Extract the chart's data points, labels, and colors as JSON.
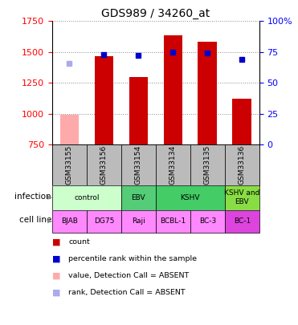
{
  "title": "GDS989 / 34260_at",
  "samples": [
    "GSM33155",
    "GSM33156",
    "GSM33154",
    "GSM33134",
    "GSM33135",
    "GSM33136"
  ],
  "count_values": [
    990,
    1467,
    1300,
    1633,
    1585,
    1120
  ],
  "count_absent": [
    true,
    false,
    false,
    false,
    false,
    false
  ],
  "percentile_values": [
    66,
    73,
    72,
    75,
    74,
    69
  ],
  "percentile_absent": [
    true,
    false,
    false,
    false,
    false,
    false
  ],
  "ylim_left": [
    750,
    1750
  ],
  "ylim_right": [
    0,
    100
  ],
  "yticks_left": [
    750,
    1000,
    1250,
    1500,
    1750
  ],
  "yticks_right": [
    0,
    25,
    50,
    75,
    100
  ],
  "infection_groups": [
    {
      "label": "control",
      "span": [
        0,
        2
      ],
      "color": "#ccffcc"
    },
    {
      "label": "EBV",
      "span": [
        2,
        3
      ],
      "color": "#55cc77"
    },
    {
      "label": "KSHV",
      "span": [
        3,
        5
      ],
      "color": "#44cc66"
    },
    {
      "label": "KSHV and\nEBV",
      "span": [
        5,
        6
      ],
      "color": "#88dd44"
    }
  ],
  "cell_lines": [
    "BJAB",
    "DG75",
    "Raji",
    "BCBL-1",
    "BC-3",
    "BC-1"
  ],
  "cell_line_colors": [
    "#ff88ff",
    "#ff88ff",
    "#ff88ff",
    "#ff88ff",
    "#ff88ff",
    "#dd44dd"
  ],
  "bar_color_normal": "#cc0000",
  "bar_color_absent": "#ffaaaa",
  "dot_color_normal": "#0000cc",
  "dot_color_absent": "#aaaaee",
  "bar_width": 0.55,
  "grid_color": "#888888",
  "sample_row_color": "#bbbbbb"
}
